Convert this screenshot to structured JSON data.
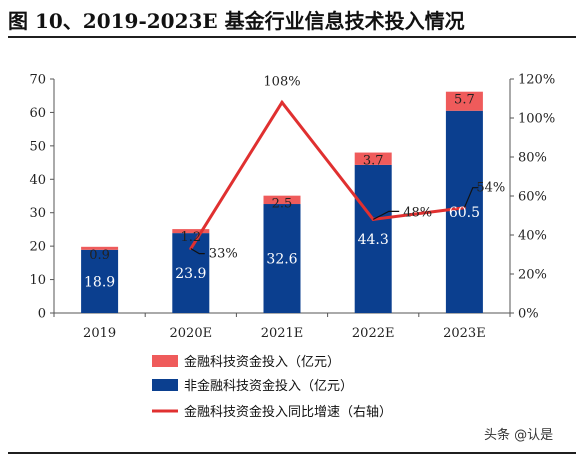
{
  "header": {
    "title": "图 10、2019-2023E 基金行业信息技术投入情况"
  },
  "watermark": "头条 @认是",
  "chart_data": {
    "type": "bar",
    "stacked": true,
    "categories": [
      "2019",
      "2020E",
      "2021E",
      "2022E",
      "2023E"
    ],
    "series": [
      {
        "name": "非金融科技资金投入（亿元）",
        "kind": "bar",
        "color": "#0b3f8f",
        "values": [
          18.9,
          23.9,
          32.6,
          44.3,
          60.5
        ],
        "labels": [
          "18.9",
          "23.9",
          "32.6",
          "44.3",
          "60.5"
        ]
      },
      {
        "name": "金融科技资金投入（亿元）",
        "kind": "bar",
        "color": "#ef5b5b",
        "values": [
          0.9,
          1.2,
          2.5,
          3.7,
          5.7
        ],
        "labels": [
          "0.9",
          "1.2",
          "2.5",
          "3.7",
          "5.7"
        ]
      },
      {
        "name": "金融科技资金投入同比增速（右轴）",
        "kind": "line",
        "axis": "right",
        "color": "#e03030",
        "x": [
          "2020E",
          "2021E",
          "2022E",
          "2023E"
        ],
        "values": [
          33,
          108,
          48,
          54
        ],
        "labels": [
          "33%",
          "108%",
          "48%",
          "54%"
        ]
      }
    ],
    "left_axis": {
      "min": 0,
      "max": 70,
      "ticks": [
        "0",
        "10",
        "20",
        "30",
        "40",
        "50",
        "60",
        "70"
      ]
    },
    "right_axis": {
      "min": 0,
      "max": 120,
      "ticks": [
        "0%",
        "20%",
        "40%",
        "60%",
        "80%",
        "100%",
        "120%"
      ]
    },
    "legend_order": [
      1,
      0,
      2
    ],
    "legend_position": "bottom-left",
    "grid": false
  }
}
